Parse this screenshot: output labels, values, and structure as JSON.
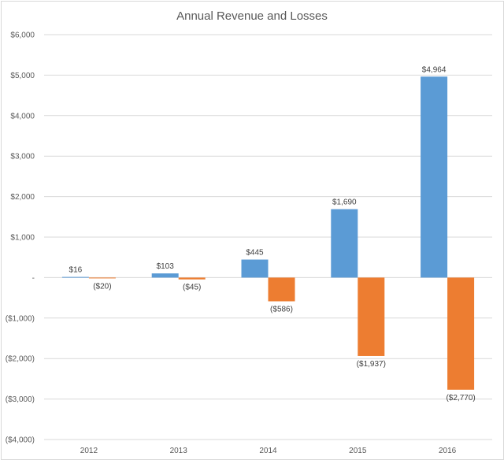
{
  "chart_data": {
    "type": "bar",
    "title": "Annual Revenue and Losses",
    "xlabel": "",
    "ylabel": "",
    "categories": [
      "2012",
      "2013",
      "2014",
      "2015",
      "2016"
    ],
    "series": [
      {
        "color": "#5b9bd5",
        "values": [
          16,
          103,
          445,
          1690,
          4964
        ],
        "labels": [
          "$16",
          "$103",
          "$445",
          "$1,690",
          "$4,964"
        ]
      },
      {
        "color": "#ed7d31",
        "values": [
          -20,
          -45,
          -586,
          -1937,
          -2770
        ],
        "labels": [
          "($20)",
          "($45)",
          "($586)",
          "($1,937)",
          "($2,770)"
        ]
      }
    ],
    "ylim": [
      -4000,
      6000
    ],
    "yticks": [
      6000,
      5000,
      4000,
      3000,
      2000,
      1000,
      0,
      -1000,
      -2000,
      -3000,
      -4000
    ],
    "ytick_labels": [
      "$6,000",
      "$5,000",
      "$4,000",
      "$3,000",
      "$2,000",
      "$1,000",
      "-",
      "($1,000)",
      "($2,000)",
      "($3,000)",
      "($4,000)"
    ],
    "grid": true,
    "legend": "none"
  }
}
